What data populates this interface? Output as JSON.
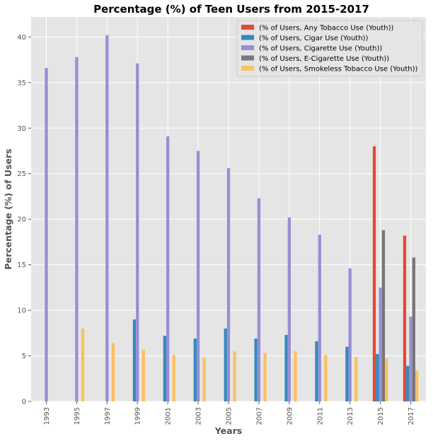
{
  "chart_data": {
    "type": "bar",
    "title": "Percentage (%) of Teen Users from 2015-2017",
    "xlabel": "Years",
    "ylabel": "Percentage (%) of Users",
    "ylim": [
      0,
      42.2
    ],
    "yticks": [
      0,
      5,
      10,
      15,
      20,
      25,
      30,
      35,
      40
    ],
    "grid": true,
    "legend_position": "top-right",
    "categories": [
      "1993",
      "1995",
      "1997",
      "1999",
      "2001",
      "2003",
      "2005",
      "2007",
      "2009",
      "2011",
      "2013",
      "2015",
      "2017"
    ],
    "series": [
      {
        "name": "(% of Users, Any Tobacco Use (Youth))",
        "color": "#E24A33",
        "values": [
          null,
          null,
          null,
          null,
          null,
          null,
          null,
          null,
          null,
          null,
          null,
          28.0,
          18.2
        ]
      },
      {
        "name": "(% of Users, Cigar Use (Youth))",
        "color": "#348ABD",
        "values": [
          null,
          null,
          null,
          9.0,
          7.2,
          6.9,
          8.0,
          6.9,
          7.3,
          6.6,
          6.0,
          5.2,
          3.9
        ]
      },
      {
        "name": "(% of Users, Cigarette Use (Youth))",
        "color": "#988ED5",
        "values": [
          36.6,
          37.8,
          40.2,
          37.1,
          29.1,
          27.5,
          25.6,
          22.3,
          20.2,
          18.3,
          14.6,
          12.5,
          9.3
        ]
      },
      {
        "name": "(% of Users, E-Cigarette Use (Youth))",
        "color": "#777777",
        "values": [
          null,
          null,
          null,
          null,
          null,
          null,
          null,
          null,
          null,
          null,
          null,
          18.8,
          15.8
        ]
      },
      {
        "name": "(% of Users, Smokeless Tobacco Use (Youth))",
        "color": "#FBC15E",
        "values": [
          null,
          8.0,
          6.4,
          5.7,
          5.1,
          4.8,
          5.5,
          5.3,
          5.5,
          5.1,
          4.9,
          4.7,
          3.4
        ]
      }
    ]
  }
}
